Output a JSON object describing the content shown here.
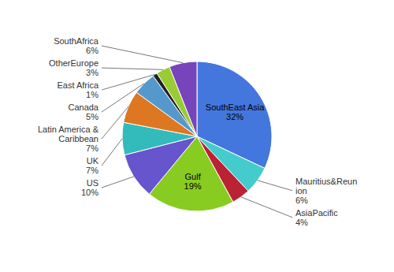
{
  "chart_data": {
    "type": "pie",
    "categories": [
      "SouthEast Asia",
      "Mauritius&Reun\nion",
      "AsiaPacific",
      "Gulf",
      "US",
      "UK",
      "Latin America &\nCaribbean",
      "Canada",
      "East Africa",
      "OtherEurope",
      "SouthAfrica"
    ],
    "values": [
      32,
      6,
      4,
      19,
      10,
      7,
      7,
      5,
      1,
      3,
      6
    ],
    "value_labels": [
      "32%",
      "6%",
      "4%",
      "19%",
      "10%",
      "7%",
      "7%",
      "5%",
      "1%",
      "3%",
      "6%"
    ],
    "colors": [
      "#4477DD",
      "#44CCCC",
      "#BB2233",
      "#88CC22",
      "#6655CC",
      "#33BBBB",
      "#DD7722",
      "#5599CC",
      "#222222",
      "#99CC33",
      "#7744BB"
    ],
    "data_labels": true
  }
}
